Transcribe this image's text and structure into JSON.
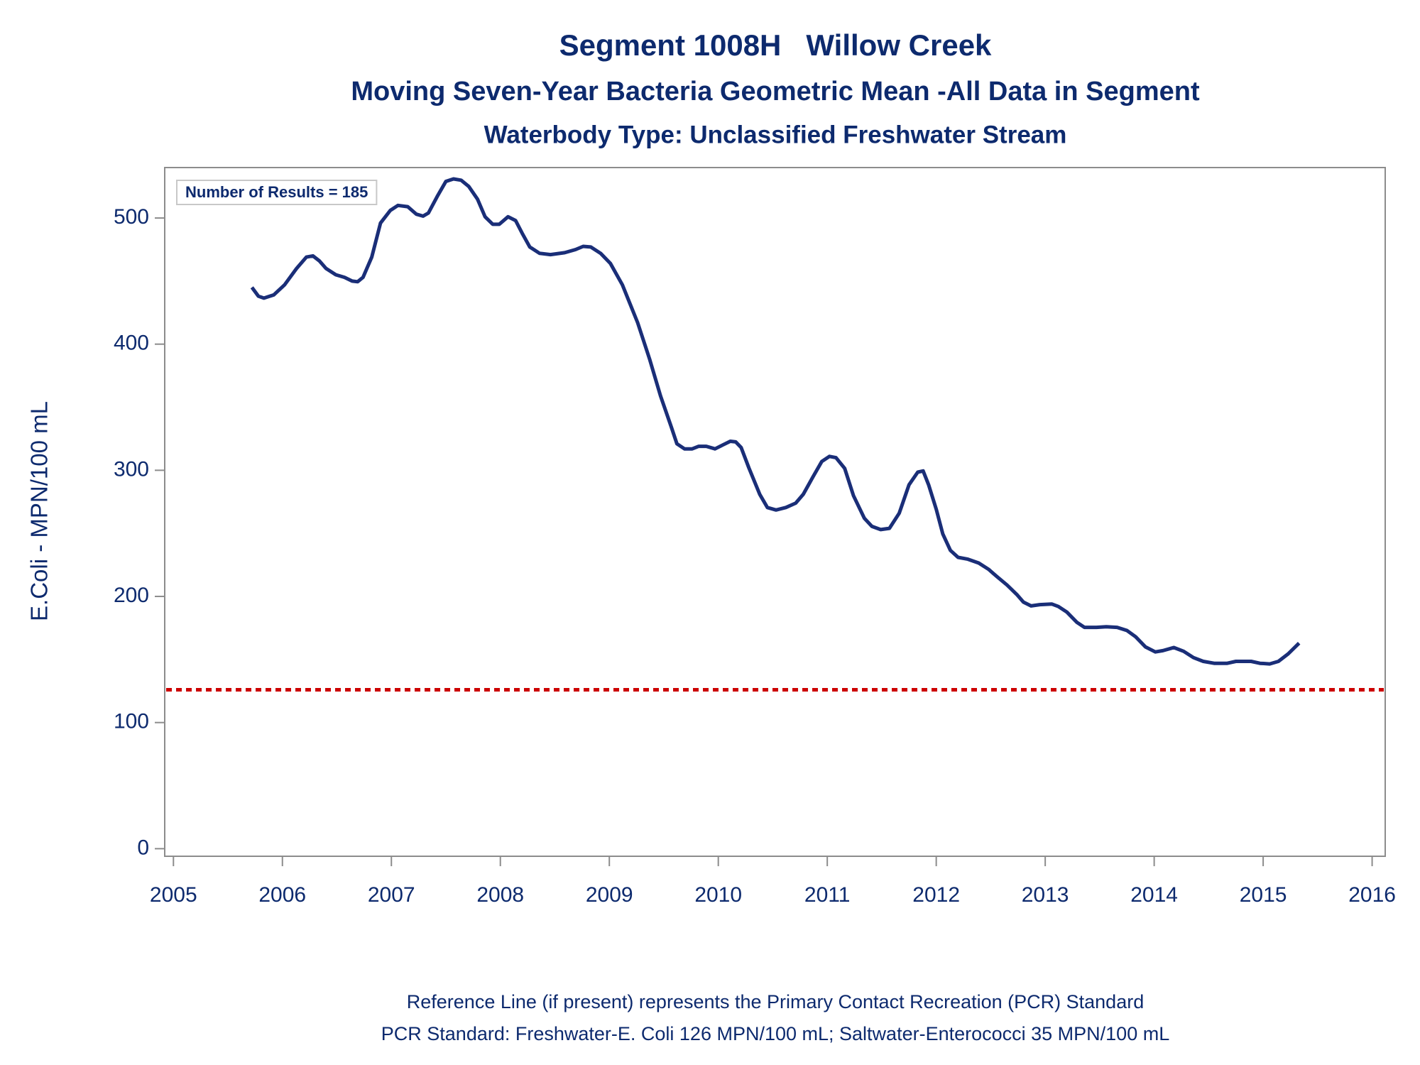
{
  "chart_data": {
    "type": "line",
    "title": "Segment 1008H   Willow Creek",
    "subtitle": "Moving Seven-Year Bacteria Geometric Mean -All Data in Segment",
    "subtitle2": "Waterbody Type: Unclassified Freshwater Stream",
    "y_label": "E.Coli - MPN/100 mL",
    "annotation": "Number of Results = 185",
    "footnotes": [
      "Reference Line (if present) represents the Primary Contact Recreation (PCR) Standard",
      "PCR Standard: Freshwater-E. Coli 126 MPN/100 mL; Saltwater-Enterococci 35 MPN/100 mL"
    ],
    "color": "#1a2e78",
    "reference_line": {
      "value": 126,
      "color": "#cc0000"
    },
    "xlim": [
      2004.92,
      2016.12
    ],
    "ylim": [
      -6,
      540
    ],
    "xticks": [
      2005,
      2006,
      2007,
      2008,
      2009,
      2010,
      2011,
      2012,
      2013,
      2014,
      2015,
      2016
    ],
    "yticks": [
      0,
      100,
      200,
      300,
      400,
      500
    ],
    "x": [
      2005.72,
      2005.78,
      2005.83,
      2005.92,
      2006.02,
      2006.13,
      2006.22,
      2006.28,
      2006.34,
      2006.4,
      2006.49,
      2006.57,
      2006.64,
      2006.69,
      2006.74,
      2006.82,
      2006.9,
      2006.99,
      2007.06,
      2007.15,
      2007.23,
      2007.29,
      2007.34,
      2007.42,
      2007.5,
      2007.57,
      2007.64,
      2007.71,
      2007.79,
      2007.86,
      2007.93,
      2007.99,
      2008.07,
      2008.14,
      2008.2,
      2008.27,
      2008.36,
      2008.46,
      2008.59,
      2008.69,
      2008.76,
      2008.83,
      2008.92,
      2009.01,
      2009.12,
      2009.26,
      2009.37,
      2009.47,
      2009.57,
      2009.62,
      2009.69,
      2009.76,
      2009.82,
      2009.89,
      2009.97,
      2010.04,
      2010.11,
      2010.16,
      2010.21,
      2010.28,
      2010.38,
      2010.45,
      2010.53,
      2010.62,
      2010.71,
      2010.78,
      2010.87,
      2010.95,
      2011.02,
      2011.08,
      2011.16,
      2011.24,
      2011.34,
      2011.41,
      2011.49,
      2011.57,
      2011.66,
      2011.75,
      2011.83,
      2011.88,
      2011.93,
      2012.0,
      2012.06,
      2012.13,
      2012.2,
      2012.29,
      2012.39,
      2012.48,
      2012.56,
      2012.65,
      2012.74,
      2012.8,
      2012.87,
      2012.95,
      2013.06,
      2013.12,
      2013.2,
      2013.29,
      2013.36,
      2013.47,
      2013.56,
      2013.66,
      2013.75,
      2013.83,
      2013.92,
      2014.01,
      2014.08,
      2014.18,
      2014.27,
      2014.36,
      2014.45,
      2014.55,
      2014.67,
      2014.75,
      2014.89,
      2014.97,
      2015.06,
      2015.14,
      2015.23,
      2015.33
    ],
    "values": [
      445,
      438,
      436.5,
      439,
      447,
      460,
      469,
      470,
      466,
      460,
      455,
      453,
      450,
      449.5,
      453,
      469,
      496,
      506,
      510,
      509,
      503,
      501.5,
      504,
      517,
      529,
      531,
      530,
      525,
      515,
      501,
      495,
      495,
      501,
      498,
      488,
      477,
      472,
      471,
      472.5,
      475,
      477.5,
      477,
      472,
      464,
      447,
      417,
      388,
      359,
      334,
      321,
      317,
      317,
      319,
      319,
      317,
      320,
      323,
      322.5,
      318,
      302,
      281,
      270.5,
      268.5,
      270.5,
      274,
      281,
      295,
      307,
      311,
      310,
      301.5,
      280,
      262,
      255.5,
      253,
      254,
      266,
      288.5,
      298.5,
      299.5,
      288.5,
      269,
      249.5,
      236.5,
      231,
      229.5,
      226.5,
      221.5,
      215.5,
      209,
      201.5,
      195.5,
      192.5,
      193.5,
      194,
      192,
      187.5,
      179.5,
      175.5,
      175.5,
      176,
      175.5,
      173,
      168,
      160,
      156,
      157,
      159.5,
      156.5,
      151.5,
      148.5,
      147,
      147,
      148.5,
      148.5,
      147,
      146.5,
      148.5,
      154.5,
      163
    ]
  }
}
